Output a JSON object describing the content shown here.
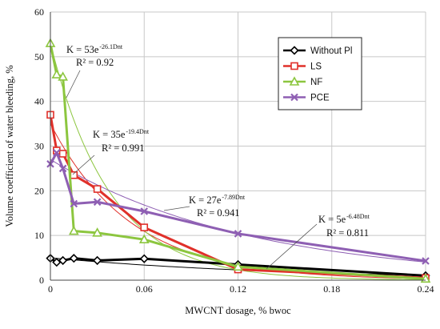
{
  "chart_data": {
    "type": "line",
    "xlabel": "MWCNT dosage, % bwoc",
    "ylabel": "Volume coefficient of water bleeding, %",
    "xlim": [
      0,
      0.24
    ],
    "ylim": [
      0,
      60
    ],
    "x_ticks": [
      "0",
      "0.06",
      "0.12",
      "0.18",
      "0.24"
    ],
    "y_ticks": [
      "0",
      "10",
      "20",
      "30",
      "40",
      "50",
      "60"
    ],
    "grid": true,
    "legend_position": "top-right",
    "series": [
      {
        "name": "Without Pl",
        "color": "#000000",
        "marker": "diamond",
        "x": [
          0,
          0.004,
          0.008,
          0.015,
          0.03,
          0.06,
          0.12,
          0.24
        ],
        "y": [
          4.9,
          4.0,
          4.4,
          4.9,
          4.4,
          4.8,
          3.5,
          1.0
        ],
        "fit": {
          "label": "K = 5e",
          "exp": "-6.48Dnt",
          "r2": "R² = 0.811",
          "a": 5,
          "b": 6.48
        }
      },
      {
        "name": "LS",
        "color": "#e0302a",
        "marker": "square",
        "x": [
          0,
          0.004,
          0.008,
          0.015,
          0.03,
          0.06,
          0.12,
          0.24
        ],
        "y": [
          37.0,
          29.0,
          28.3,
          23.5,
          20.4,
          11.8,
          2.4,
          0.5
        ],
        "fit": {
          "label": "K = 35e",
          "exp": "-19.4Dnt",
          "r2": "R² = 0.991",
          "a": 35,
          "b": 19.4
        }
      },
      {
        "name": "NF",
        "color": "#8cc63f",
        "marker": "triangle",
        "x": [
          0,
          0.004,
          0.008,
          0.015,
          0.03,
          0.06,
          0.12,
          0.24
        ],
        "y": [
          53.0,
          46.0,
          45.5,
          11.0,
          10.6,
          9.1,
          3.0,
          0.3
        ],
        "fit": {
          "label": "K = 53e",
          "exp": "-26.1Dnt",
          "r2": "R² = 0.92",
          "a": 53,
          "b": 26.1
        }
      },
      {
        "name": "PCE",
        "color": "#8e5fb3",
        "marker": "x",
        "x": [
          0,
          0.004,
          0.008,
          0.015,
          0.03,
          0.06,
          0.12,
          0.24
        ],
        "y": [
          26.0,
          28.5,
          25.0,
          17.1,
          17.5,
          15.4,
          10.4,
          4.3
        ],
        "fit": {
          "label": "K = 27e",
          "exp": "-7.89Dnt",
          "r2": "R² = 0.941",
          "a": 27,
          "b": 7.89
        }
      }
    ]
  }
}
